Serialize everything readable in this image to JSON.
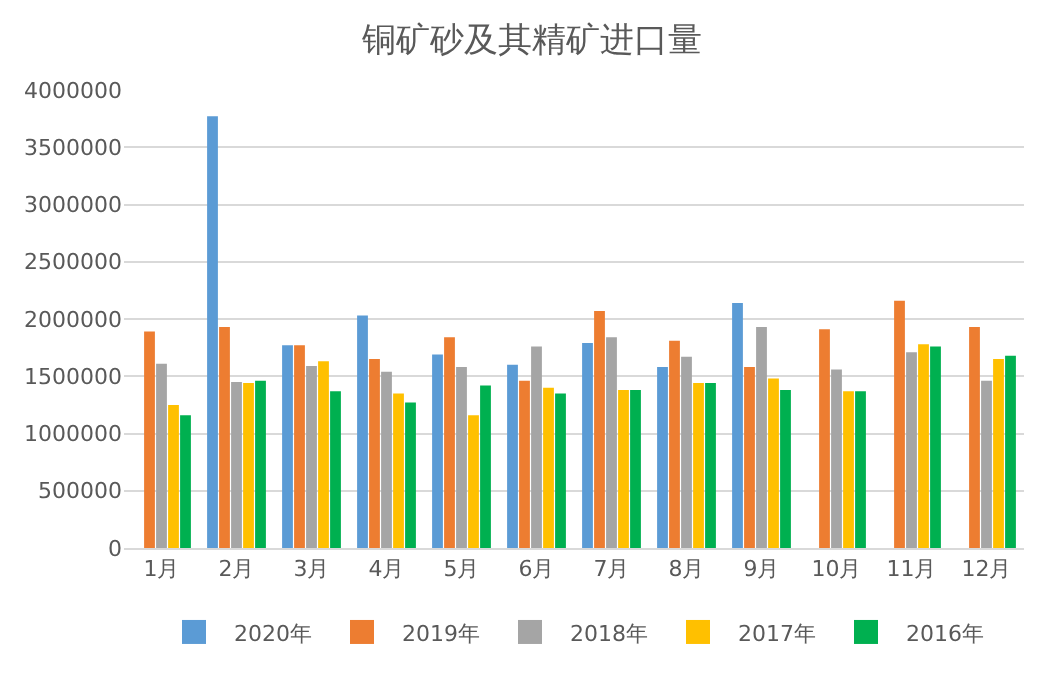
{
  "chart_data": {
    "type": "bar",
    "title": "铜矿砂及其精矿进口量",
    "categories": [
      "1月",
      "2月",
      "3月",
      "4月",
      "5月",
      "6月",
      "7月",
      "8月",
      "9月",
      "10月",
      "11月",
      "12月"
    ],
    "series": [
      {
        "name": "2020年",
        "color": "#5b9bd5",
        "values": [
          null,
          3770000,
          1770000,
          2030000,
          1690000,
          1600000,
          1790000,
          1580000,
          2140000,
          null,
          null,
          null
        ]
      },
      {
        "name": "2019年",
        "color": "#ed7d31",
        "values": [
          1890000,
          1930000,
          1770000,
          1650000,
          1840000,
          1460000,
          2070000,
          1810000,
          1580000,
          1910000,
          2160000,
          1930000
        ]
      },
      {
        "name": "2018年",
        "color": "#a5a5a5",
        "values": [
          1610000,
          1450000,
          1590000,
          1540000,
          1580000,
          1760000,
          1840000,
          1670000,
          1930000,
          1560000,
          1710000,
          1460000
        ]
      },
      {
        "name": "2017年",
        "color": "#ffc000",
        "values": [
          1250000,
          1440000,
          1630000,
          1350000,
          1160000,
          1400000,
          1380000,
          1440000,
          1480000,
          1370000,
          1780000,
          1650000
        ]
      },
      {
        "name": "2016年",
        "color": "#00b050",
        "values": [
          1160000,
          1460000,
          1370000,
          1270000,
          1420000,
          1350000,
          1380000,
          1440000,
          1380000,
          1370000,
          1760000,
          1680000
        ]
      }
    ],
    "ylim": [
      0,
      4000000
    ],
    "yticks": [
      0,
      500000,
      1000000,
      1500000,
      2000000,
      2500000,
      3000000,
      3500000,
      4000000
    ],
    "grid": "y",
    "legend": "bottom"
  }
}
